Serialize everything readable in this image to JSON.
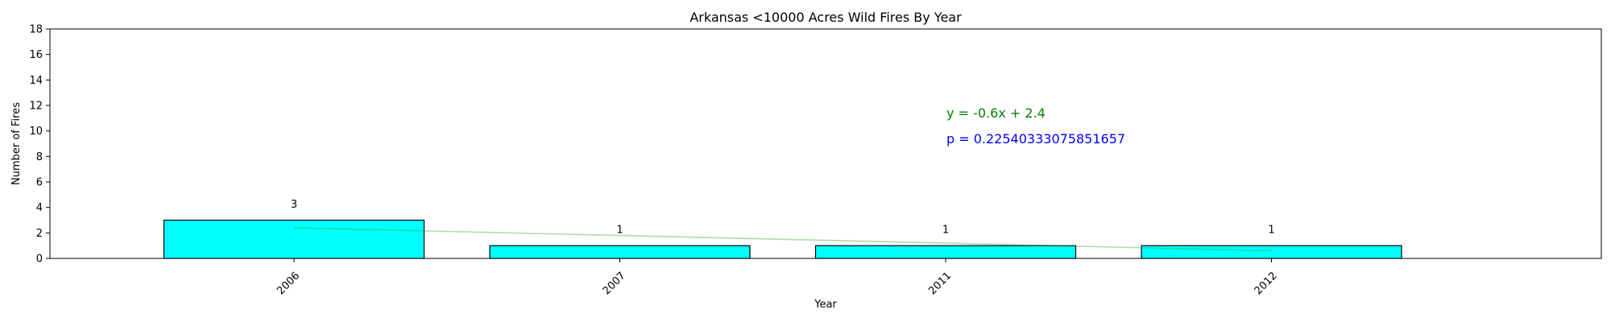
{
  "chart_data": {
    "type": "bar",
    "title": "Arkansas <10000 Acres Wild Fires By Year",
    "xlabel": "Year",
    "ylabel": "Number of Fires",
    "categories": [
      "2006",
      "2007",
      "2011",
      "2012"
    ],
    "values": [
      3,
      1,
      1,
      1
    ],
    "ylim": [
      0,
      18
    ],
    "yticks": [
      0,
      2,
      4,
      6,
      8,
      10,
      12,
      14,
      16,
      18
    ],
    "data_labels": [
      "3",
      "1",
      "1",
      "1"
    ],
    "trendline": {
      "slope": -0.6,
      "intercept": 2.4,
      "color": "#2ca02c"
    },
    "annotations": {
      "equation": "y = -0.6x + 2.4",
      "equation_color": "#008000",
      "p_value": "p = 0.22540333075851657",
      "p_value_color": "#0000ff"
    },
    "bar_color": "#00ffff",
    "bar_edge_color": "#000000",
    "grid": false,
    "legend": "none"
  }
}
